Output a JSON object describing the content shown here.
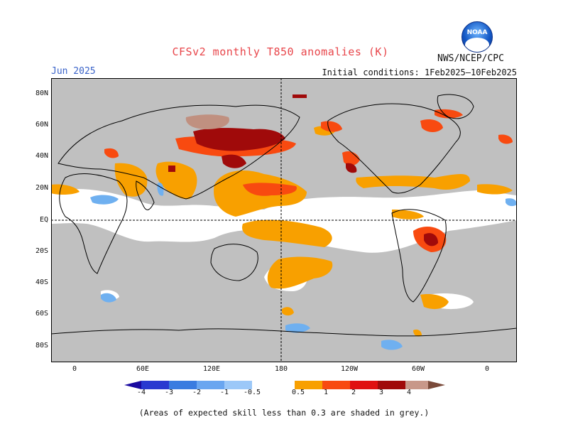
{
  "header": {
    "title": "CFSv2 monthly T850 anomalies (K)",
    "month": "Jun 2025",
    "initial_conditions": "Initial conditions: 1Feb2025–10Feb2025",
    "agency": "NWS/NCEP/CPC",
    "logo_text": "NOAA"
  },
  "map": {
    "lat_labels": [
      "80N",
      "60N",
      "40N",
      "20N",
      "EQ",
      "20S",
      "40S",
      "60S",
      "80S"
    ],
    "lon_labels": [
      "0",
      "60E",
      "120E",
      "180",
      "120W",
      "60W",
      "0"
    ],
    "ocean_land_fill": "#c0c0c0",
    "colors": {
      "blue_dark": "#1d1dc8",
      "blue_mid": "#3b7ee0",
      "blue_light": "#6fb0f0",
      "orange": "#f8a000",
      "orange_red": "#f84a10",
      "red": "#d82020",
      "dark_red": "#a00a0a",
      "brown": "#c09080"
    }
  },
  "colorbar": {
    "labels": [
      "-4",
      "-3",
      "-2",
      "-1",
      "-0.5",
      "0.5",
      "1",
      "2",
      "3",
      "4"
    ],
    "colors": [
      "#1a0aa0",
      "#2a3ad0",
      "#3a7ce0",
      "#6aa6f0",
      "#9cc8f8",
      "#ffffff",
      "#f8a000",
      "#f84a10",
      "#e01010",
      "#a00a0a",
      "#c8988a",
      "#7a4a3a"
    ]
  },
  "footnote": "(Areas of expected skill less than 0.3 are shaded in grey.)"
}
